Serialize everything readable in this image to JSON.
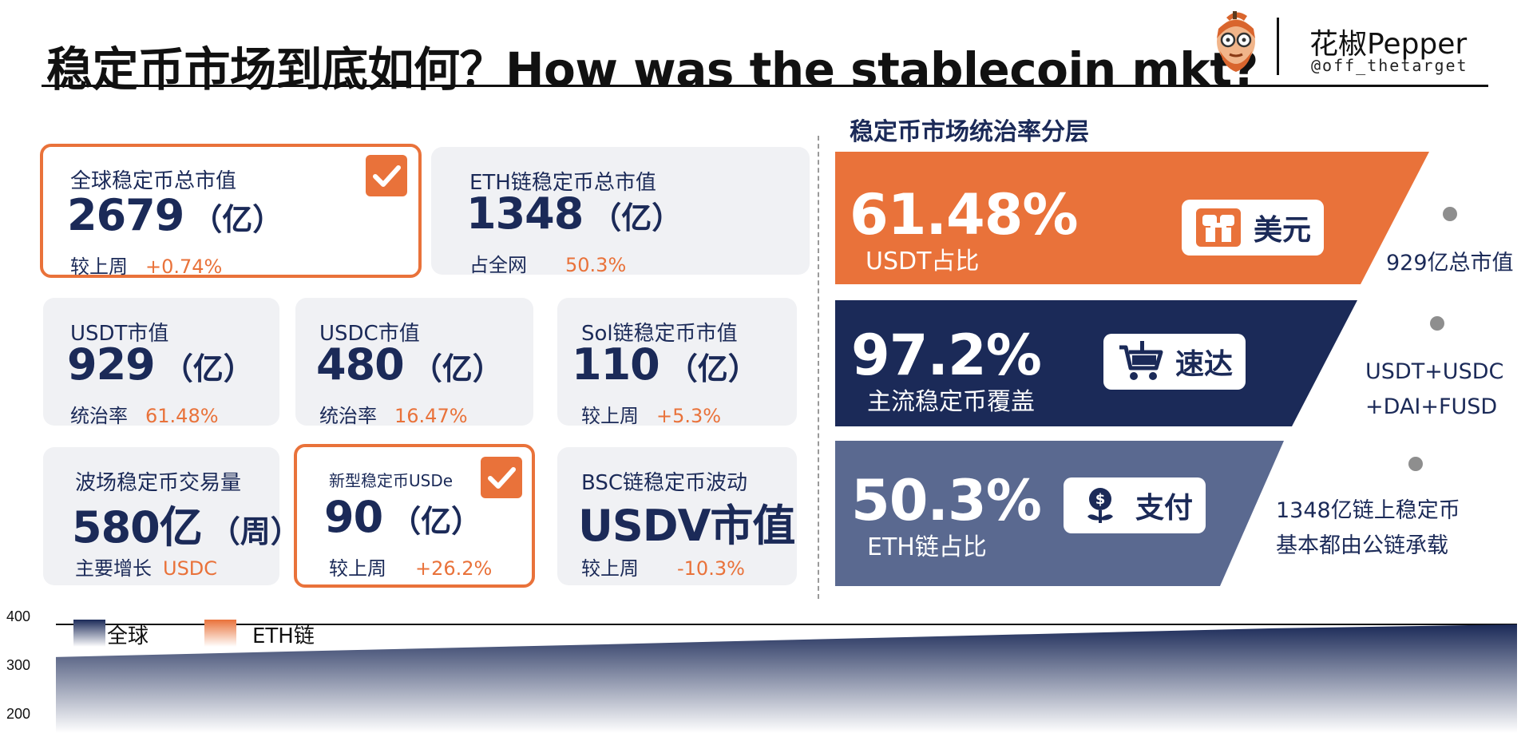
{
  "header": {
    "title": "稳定币市场到底如何？How was the stablecoin mkt?",
    "author": "花椒Pepper",
    "handle": "@off_thetarget"
  },
  "cards": [
    {
      "label": "全球稳定币总市值",
      "value": "2679",
      "unit": "（亿）",
      "sub_label": "较上周",
      "sub_value": "+0.74%",
      "checked": true
    },
    {
      "label": "ETH链稳定币总市值",
      "value": "1348",
      "unit": "（亿）",
      "sub_label": "占全网",
      "sub_value": "50.3%",
      "checked": false
    },
    {
      "label": "USDT市值",
      "value": "929",
      "unit": "（亿）",
      "sub_label": "统治率",
      "sub_value": "61.48%",
      "checked": false
    },
    {
      "label": "USDC市值",
      "value": "480",
      "unit": "（亿）",
      "sub_label": "统治率",
      "sub_value": "16.47%",
      "checked": false
    },
    {
      "label": "Sol链稳定币市值",
      "value": "110",
      "unit": "（亿）",
      "sub_label": "较上周",
      "sub_value": "+5.3%",
      "checked": false
    },
    {
      "label": "波场稳定币交易量",
      "value": "580亿",
      "unit": "（周）",
      "sub_label": "主要增长",
      "sub_value": "USDC",
      "checked": false
    },
    {
      "label": "新型稳定币USDe",
      "value": "90",
      "unit": "（亿）",
      "sub_label": "较上周",
      "sub_value": "+26.2%",
      "checked": true
    },
    {
      "label": "BSC链稳定币波动",
      "value": "USDV市值",
      "unit": "",
      "sub_label": "较上周",
      "sub_value": "-10.3%",
      "checked": false
    }
  ],
  "dominance": {
    "title": "稳定币市场统治率分层",
    "tiers": [
      {
        "pct": "61.48%",
        "caption": "USDT占比",
        "tag": "美元",
        "tag_icon": "people-icon",
        "note_lines": [
          "929亿总市值"
        ],
        "color": "#e9723a",
        "tag_color": "#e9723a"
      },
      {
        "pct": "97.2%",
        "caption": "主流稳定币覆盖",
        "tag": "速达",
        "tag_icon": "cart-icon",
        "note_lines": [
          "USDT+USDC",
          "+DAI+FUSD"
        ],
        "color": "#1b2a58",
        "tag_color": "#1b2a58"
      },
      {
        "pct": "50.3%",
        "caption": "ETH链占比",
        "tag": "支付",
        "tag_icon": "dollar-sprout-icon",
        "note_lines": [
          "1348亿链上稳定币",
          "基本都由公链承载"
        ],
        "color": "#5a6990",
        "tag_color": "#1b2a58"
      }
    ]
  },
  "chart_data": {
    "type": "area",
    "title": "",
    "xlabel": "",
    "ylabel": "",
    "ylim": [
      200,
      400
    ],
    "yticks": [
      400,
      300,
      200
    ],
    "legend": {
      "placement": "top-left"
    },
    "grid": false,
    "series": [
      {
        "name": "全球",
        "values": [
          333,
          345,
          356,
          368,
          380,
          392,
          400
        ],
        "color": "#1b2a58"
      },
      {
        "name": "ETH链",
        "values": [],
        "color": "#e9723a"
      }
    ]
  }
}
